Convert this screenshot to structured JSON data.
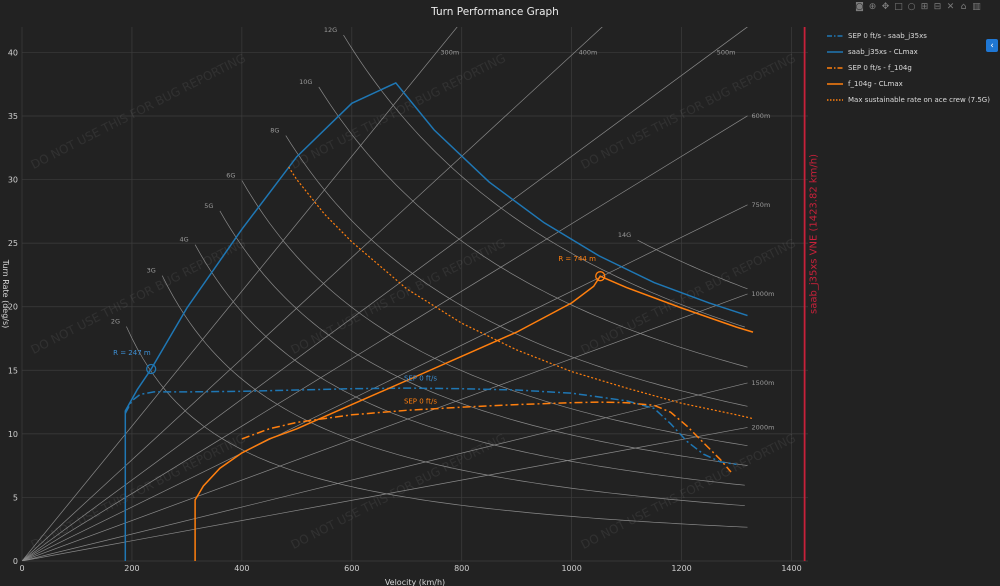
{
  "title": "Turn Performance Graph",
  "modebar": [
    {
      "name": "camera-icon",
      "glyph": "◙"
    },
    {
      "name": "zoom-icon",
      "glyph": "⊕"
    },
    {
      "name": "pan-icon",
      "glyph": "✥"
    },
    {
      "name": "box-select-icon",
      "glyph": "□"
    },
    {
      "name": "lasso-icon",
      "glyph": "○"
    },
    {
      "name": "zoom-in-icon",
      "glyph": "⊞"
    },
    {
      "name": "zoom-out-icon",
      "glyph": "⊟"
    },
    {
      "name": "autoscale-icon",
      "glyph": "✕"
    },
    {
      "name": "reset-axes-icon",
      "glyph": "⌂"
    },
    {
      "name": "plotly-logo-icon",
      "glyph": "▥"
    }
  ],
  "legend": [
    {
      "label": "SEP 0 ft/s - saab_j35xs",
      "color": "#1f77b4",
      "dash": "dashdot"
    },
    {
      "label": "saab_j35xs - CLmax",
      "color": "#1f77b4",
      "dash": "solid"
    },
    {
      "label": "SEP 0 ft/s - f_104g",
      "color": "#ff7f0e",
      "dash": "dashdot"
    },
    {
      "label": "f_104g - CLmax",
      "color": "#ff7f0e",
      "dash": "solid"
    },
    {
      "label": "Max sustainable rate on ace crew (7.5G)",
      "color": "#ff7f0e",
      "dash": "dot"
    }
  ],
  "watermark": "DO NOT USE THIS FOR BUG REPORTING",
  "chart_data": {
    "type": "line",
    "title": "Turn Performance Graph",
    "xlabel": "Velocity (km/h)",
    "ylabel": "Turn Rate (deg/s)",
    "xlim": [
      0,
      1430
    ],
    "ylim": [
      0,
      42
    ],
    "xticks": [
      0,
      200,
      400,
      600,
      800,
      1000,
      1200,
      1400
    ],
    "yticks": [
      0,
      5,
      10,
      15,
      20,
      25,
      30,
      35,
      40
    ],
    "grid": true,
    "legend_position": "right",
    "g_lines": [
      {
        "label": "2G",
        "g": 2,
        "label_x": 190
      },
      {
        "label": "3G",
        "g": 3,
        "label_x": 255
      },
      {
        "label": "4G",
        "g": 4,
        "label_x": 315
      },
      {
        "label": "5G",
        "g": 5,
        "label_x": 360
      },
      {
        "label": "6G",
        "g": 6,
        "label_x": 400
      },
      {
        "label": "8G",
        "g": 8,
        "label_x": 480
      },
      {
        "label": "10G",
        "g": 10,
        "label_x": 540
      },
      {
        "label": "12G",
        "g": 12,
        "label_x": 585
      },
      {
        "label": "14G",
        "g": 14,
        "label_x": 1120
      }
    ],
    "radius_lines": [
      {
        "label": "300m",
        "r": 300
      },
      {
        "label": "400m",
        "r": 400
      },
      {
        "label": "500m",
        "r": 500
      },
      {
        "label": "600m",
        "r": 600
      },
      {
        "label": "750m",
        "r": 750
      },
      {
        "label": "1000m",
        "r": 1000
      },
      {
        "label": "1500m",
        "r": 1500
      },
      {
        "label": "2000m",
        "r": 2000
      }
    ],
    "series": [
      {
        "name": "SEP 0 ft/s - saab_j35xs",
        "color": "#1f77b4",
        "dash": "dashdot",
        "x": [
          188,
          200,
          215,
          240,
          300,
          400,
          500,
          600,
          700,
          800,
          900,
          1000,
          1100,
          1150,
          1180,
          1210,
          1240,
          1270,
          1300
        ],
        "y": [
          11.6,
          12.6,
          13.1,
          13.3,
          13.3,
          13.35,
          13.45,
          13.55,
          13.6,
          13.55,
          13.45,
          13.2,
          12.6,
          12.0,
          10.8,
          9.4,
          8.4,
          7.8,
          7.6
        ]
      },
      {
        "name": "saab_j35xs - CLmax",
        "color": "#1f77b4",
        "dash": "solid",
        "x": [
          188,
          188,
          210,
          235,
          300,
          400,
          500,
          600,
          680,
          750,
          850,
          950,
          1050,
          1150,
          1250,
          1320
        ],
        "y": [
          0,
          11.8,
          13.5,
          15.1,
          19.9,
          26.1,
          31.8,
          36.0,
          37.6,
          33.9,
          29.8,
          26.6,
          24.0,
          21.9,
          20.3,
          19.3
        ]
      },
      {
        "name": "SEP 0 ft/s - f_104g",
        "color": "#ff7f0e",
        "dash": "dashdot",
        "x": [
          400,
          450,
          500,
          600,
          700,
          800,
          900,
          1000,
          1050,
          1100,
          1150,
          1180,
          1210,
          1240,
          1270,
          1290
        ],
        "y": [
          9.6,
          10.4,
          10.9,
          11.5,
          11.85,
          12.1,
          12.3,
          12.45,
          12.5,
          12.45,
          12.25,
          11.7,
          10.6,
          9.3,
          8.0,
          7.0
        ]
      },
      {
        "name": "f_104g - CLmax",
        "color": "#ff7f0e",
        "dash": "solid",
        "x": [
          315,
          315,
          330,
          360,
          400,
          450,
          500,
          600,
          700,
          800,
          900,
          1000,
          1040,
          1052,
          1100,
          1200,
          1300,
          1330
        ],
        "y": [
          0,
          4.8,
          5.9,
          7.3,
          8.5,
          9.6,
          10.4,
          12.3,
          14.2,
          16.1,
          18.0,
          20.3,
          21.6,
          22.4,
          21.5,
          19.9,
          18.4,
          18.0
        ]
      },
      {
        "name": "Max sustainable rate on ace crew (7.5G)",
        "color": "#ff7f0e",
        "dash": "dot",
        "x": [
          485,
          500,
          550,
          600,
          700,
          800,
          900,
          1000,
          1100,
          1200,
          1300,
          1330
        ],
        "y": [
          31.0,
          30.0,
          27.3,
          25.1,
          21.4,
          18.7,
          16.6,
          14.9,
          13.6,
          12.4,
          11.5,
          11.2
        ]
      }
    ],
    "annotations": [
      {
        "text": "R = 247 m",
        "x": 200,
        "y": 16.2,
        "color": "#3d8fd4"
      },
      {
        "text": "R = 744 m",
        "x": 1010,
        "y": 23.6,
        "color": "#ff7f0e"
      },
      {
        "text": "SEP 0 ft/s",
        "x": 725,
        "y": 14.2,
        "color": "#3d8fd4"
      },
      {
        "text": "SEP 0 ft/s",
        "x": 725,
        "y": 12.4,
        "color": "#ff7f0e"
      }
    ],
    "markers": [
      {
        "x": 235,
        "y": 15.1,
        "color": "#1f77b4"
      },
      {
        "x": 1052,
        "y": 22.4,
        "color": "#ff7f0e"
      }
    ],
    "vne": {
      "x": 1423.82,
      "label": "saab_j35xs VNE (1423.82 km/h)",
      "color": "#c8213a"
    }
  }
}
